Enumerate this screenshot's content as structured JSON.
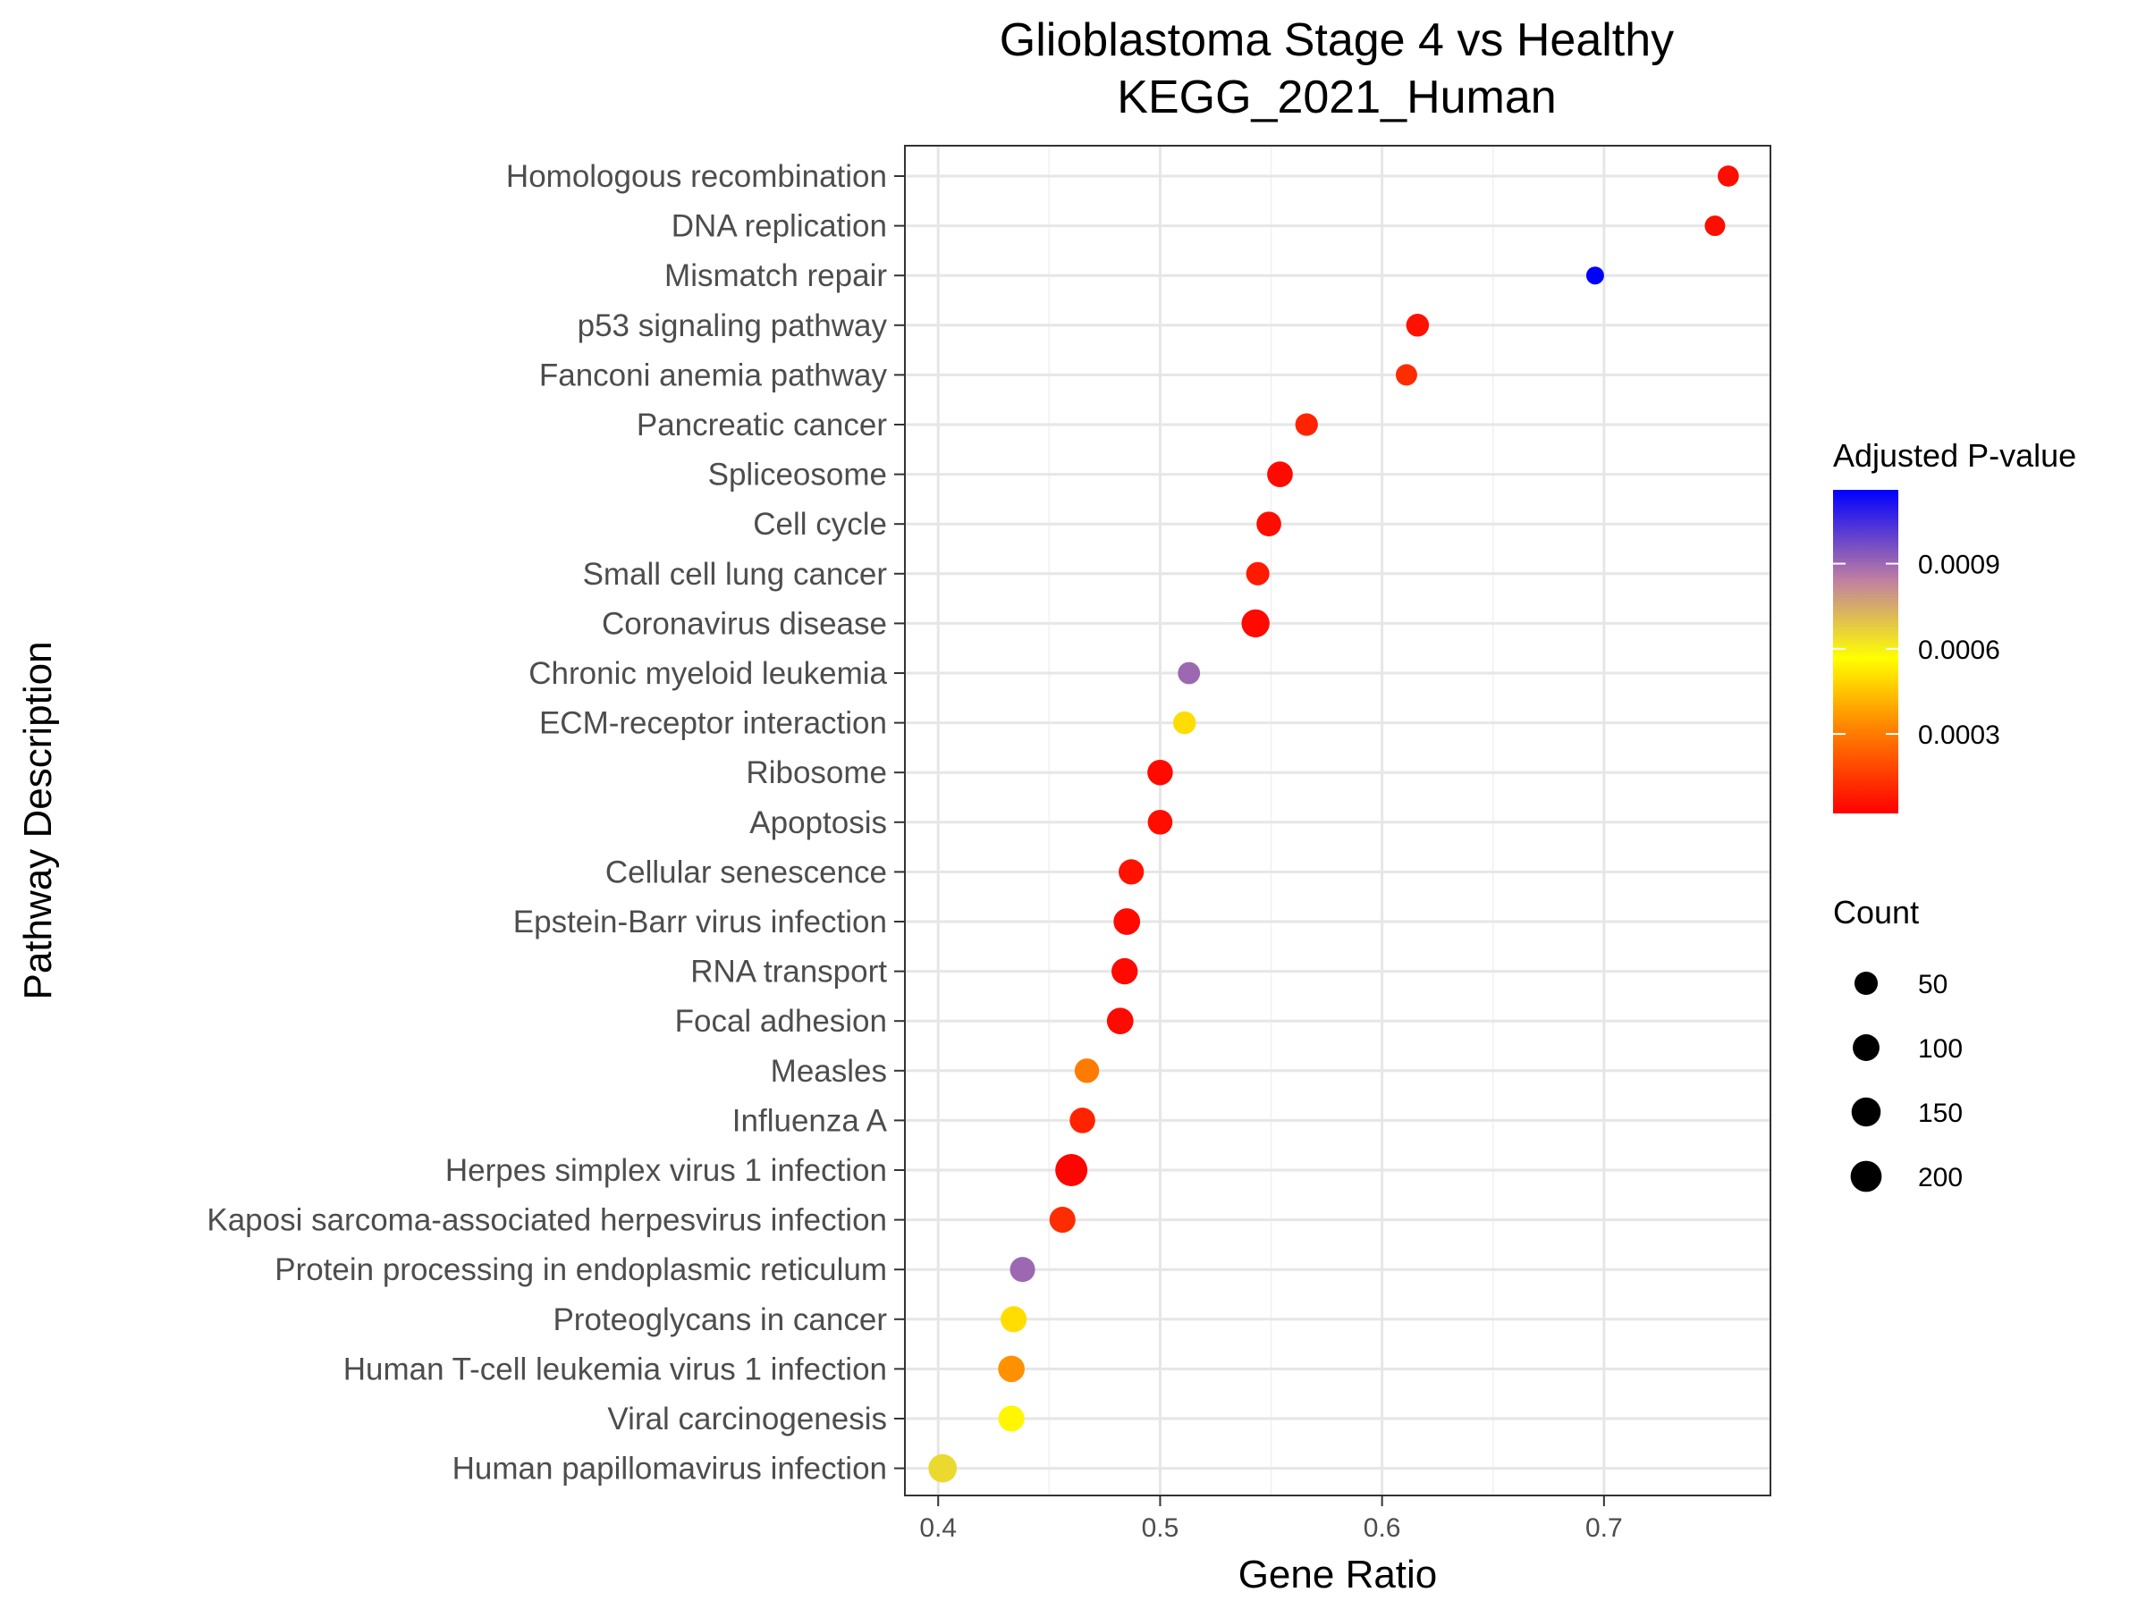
{
  "chart_data": {
    "type": "scatter",
    "title": "Glioblastoma Stage 4 vs Healthy",
    "subtitle": "KEGG_2021_Human",
    "xlabel": "Gene Ratio",
    "ylabel": "Pathway Description",
    "xlim": [
      0.385,
      0.775
    ],
    "x_ticks": [
      "0.4",
      "0.5",
      "0.6",
      "0.7"
    ],
    "grid": true,
    "legend_position": "right",
    "color_legend": {
      "title": "Adjusted P-value",
      "low_color": "#ff0000",
      "mid_color": "#ffff00",
      "high_color": "#0000ff",
      "range": [
        2e-05,
        0.00116
      ],
      "breaks": [
        0.0009,
        0.0006,
        0.0003
      ],
      "break_labels": [
        "0.0009",
        "0.0006",
        "0.0003"
      ]
    },
    "size_legend": {
      "title": "Count",
      "breaks": [
        50,
        100,
        150,
        200
      ],
      "break_labels": [
        "50",
        "100",
        "150",
        "200"
      ],
      "count_range": [
        20,
        230
      ]
    },
    "points": [
      {
        "pathway": "Homologous recombination",
        "gene_ratio": 0.756,
        "count": 31,
        "p_adj": 5e-05
      },
      {
        "pathway": "DNA replication",
        "gene_ratio": 0.75,
        "count": 27,
        "p_adj": 5e-05
      },
      {
        "pathway": "Mismatch repair",
        "gene_ratio": 0.696,
        "count": 16,
        "p_adj": 0.00116
      },
      {
        "pathway": "p53 signaling pathway",
        "gene_ratio": 0.616,
        "count": 45,
        "p_adj": 6e-05
      },
      {
        "pathway": "Fanconi anemia pathway",
        "gene_ratio": 0.611,
        "count": 33,
        "p_adj": 0.00012
      },
      {
        "pathway": "Pancreatic cancer",
        "gene_ratio": 0.566,
        "count": 43,
        "p_adj": 0.0001
      },
      {
        "pathway": "Spliceosome",
        "gene_ratio": 0.554,
        "count": 82,
        "p_adj": 4e-05
      },
      {
        "pathway": "Cell cycle",
        "gene_ratio": 0.549,
        "count": 68,
        "p_adj": 5e-05
      },
      {
        "pathway": "Small cell lung cancer",
        "gene_ratio": 0.544,
        "count": 50,
        "p_adj": 8e-05
      },
      {
        "pathway": "Coronavirus disease",
        "gene_ratio": 0.543,
        "count": 126,
        "p_adj": 4e-05
      },
      {
        "pathway": "Chronic myeloid leukemia",
        "gene_ratio": 0.513,
        "count": 39,
        "p_adj": 0.0009
      },
      {
        "pathway": "ECM-receptor interaction",
        "gene_ratio": 0.511,
        "count": 45,
        "p_adj": 0.0005
      },
      {
        "pathway": "Ribosome",
        "gene_ratio": 0.5,
        "count": 79,
        "p_adj": 4e-05
      },
      {
        "pathway": "Apoptosis",
        "gene_ratio": 0.5,
        "count": 68,
        "p_adj": 5e-05
      },
      {
        "pathway": "Cellular senescence",
        "gene_ratio": 0.487,
        "count": 76,
        "p_adj": 6e-05
      },
      {
        "pathway": "Epstein-Barr virus infection",
        "gene_ratio": 0.485,
        "count": 98,
        "p_adj": 4e-05
      },
      {
        "pathway": "RNA transport",
        "gene_ratio": 0.484,
        "count": 92,
        "p_adj": 4e-05
      },
      {
        "pathway": "Focal adhesion",
        "gene_ratio": 0.482,
        "count": 97,
        "p_adj": 4e-05
      },
      {
        "pathway": "Measles",
        "gene_ratio": 0.467,
        "count": 65,
        "p_adj": 0.0003
      },
      {
        "pathway": "Influenza A",
        "gene_ratio": 0.465,
        "count": 80,
        "p_adj": 0.0001
      },
      {
        "pathway": "Herpes simplex virus 1 infection",
        "gene_ratio": 0.46,
        "count": 228,
        "p_adj": 3e-05
      },
      {
        "pathway": "Kaposi sarcoma-associated herpesvirus infection",
        "gene_ratio": 0.456,
        "count": 88,
        "p_adj": 0.00012
      },
      {
        "pathway": "Protein processing in endoplasmic reticulum",
        "gene_ratio": 0.438,
        "count": 74,
        "p_adj": 0.0009
      },
      {
        "pathway": "Proteoglycans in cancer",
        "gene_ratio": 0.434,
        "count": 89,
        "p_adj": 0.0005
      },
      {
        "pathway": "Human T-cell leukemia virus 1 infection",
        "gene_ratio": 0.433,
        "count": 96,
        "p_adj": 0.00035
      },
      {
        "pathway": "Viral carcinogenesis",
        "gene_ratio": 0.433,
        "count": 88,
        "p_adj": 0.00055
      },
      {
        "pathway": "Human papillomavirus infection",
        "gene_ratio": 0.402,
        "count": 133,
        "p_adj": 0.00065
      }
    ]
  }
}
